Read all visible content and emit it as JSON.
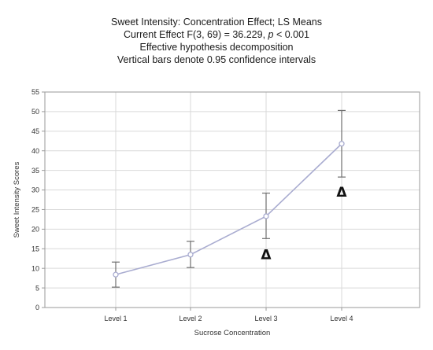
{
  "chart_data": {
    "type": "line",
    "title": "Sweet Intensity: Concentration Effect; LS Means",
    "subtitle_lines": [
      {
        "before": "Current Effect F(3, 69) = 36.229, ",
        "italic": "p",
        "after": " < 0.001"
      },
      {
        "before": "Effective hypothesis decomposition",
        "italic": "",
        "after": ""
      },
      {
        "before": "Vertical bars denote 0.95 confidence intervals",
        "italic": "",
        "after": ""
      }
    ],
    "xlabel": "Sucrose Concentration",
    "ylabel": "Sweet Intensity Scores",
    "categories": [
      "Level 1",
      "Level 2",
      "Level 3",
      "Level 4"
    ],
    "series": [
      {
        "values": [
          8.4,
          13.5,
          23.3,
          41.8
        ],
        "ci_lower": [
          5.2,
          10.2,
          17.6,
          33.3
        ],
        "ci_upper": [
          11.6,
          16.9,
          29.2,
          50.3
        ]
      }
    ],
    "ylim": [
      0,
      55
    ],
    "yticks": [
      0,
      5,
      10,
      15,
      20,
      25,
      30,
      35,
      40,
      45,
      50,
      55
    ],
    "grid": true,
    "annotations": [
      {
        "text": "Δ",
        "category": "Level 3",
        "y": 13.5
      },
      {
        "text": "Δ",
        "category": "Level 4",
        "y": 29.5
      }
    ],
    "colors": {
      "line": "#a9acd0",
      "errorbar": "#707070",
      "grid": "#d9d9d9",
      "frame": "#9a9a9a"
    }
  }
}
